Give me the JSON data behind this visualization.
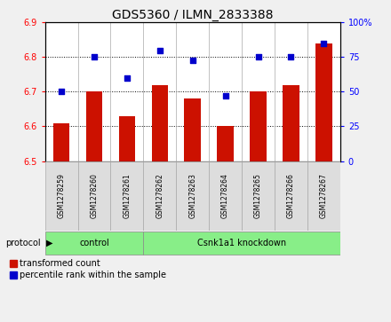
{
  "title": "GDS5360 / ILMN_2833388",
  "samples": [
    "GSM1278259",
    "GSM1278260",
    "GSM1278261",
    "GSM1278262",
    "GSM1278263",
    "GSM1278264",
    "GSM1278265",
    "GSM1278266",
    "GSM1278267"
  ],
  "bar_values": [
    6.61,
    6.7,
    6.63,
    6.72,
    6.68,
    6.6,
    6.7,
    6.72,
    6.84
  ],
  "scatter_values": [
    50,
    75,
    60,
    80,
    73,
    47,
    75,
    75,
    85
  ],
  "ylim_left": [
    6.5,
    6.9
  ],
  "ylim_right": [
    0,
    100
  ],
  "yticks_left": [
    6.5,
    6.6,
    6.7,
    6.8,
    6.9
  ],
  "yticks_right": [
    0,
    25,
    50,
    75,
    100
  ],
  "bar_color": "#cc1100",
  "scatter_color": "#0000cc",
  "control_samples": 3,
  "protocol_label": "protocol",
  "group_labels": [
    "control",
    "Csnk1a1 knockdown"
  ],
  "group_color": "#88ee88",
  "legend_items": [
    "transformed count",
    "percentile rank within the sample"
  ],
  "bg_color": "#f0f0f0",
  "plot_bg": "#ffffff",
  "title_fontsize": 10,
  "tick_fontsize": 7,
  "bar_width": 0.5
}
